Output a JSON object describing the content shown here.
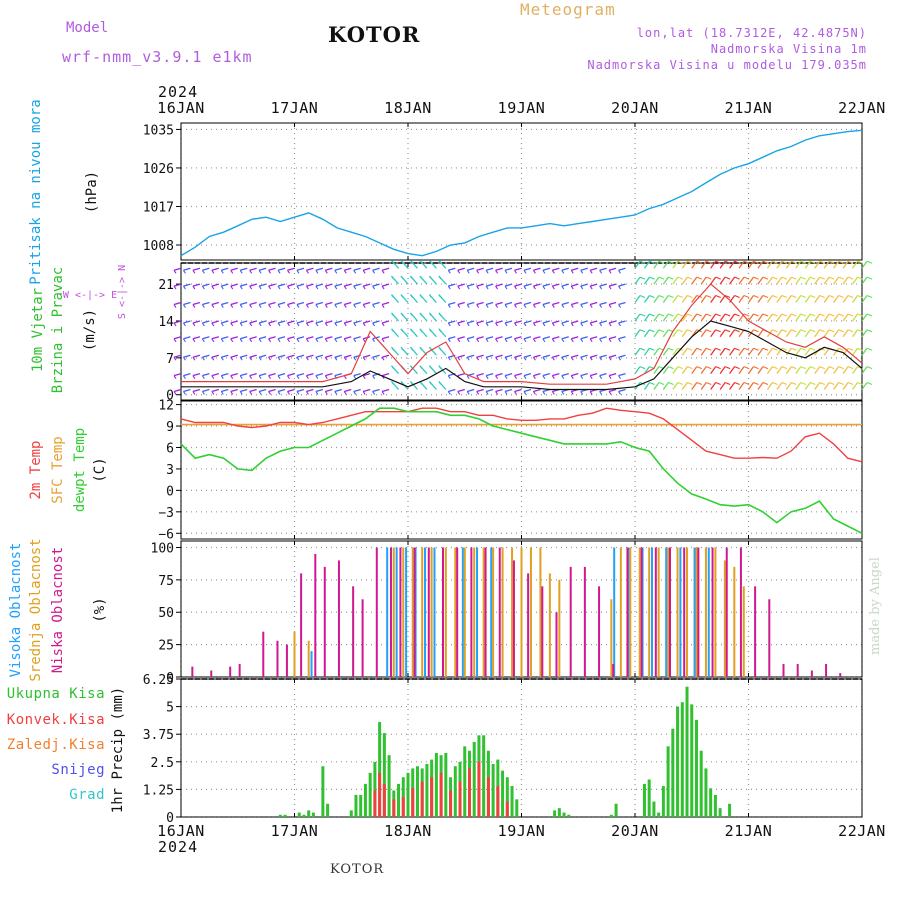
{
  "header": {
    "model_label": "Model",
    "model_version": "wrf-nmm_v3.9.1  e1km",
    "location_title": "KOTOR",
    "chart_kind": "Meteogram",
    "coords": "lon,lat (18.7312E, 42.4875N)",
    "altitude": "Nadmorska Visina 1m",
    "model_altitude": "Nadmorska Visina u modelu 179.035m",
    "year": "2024",
    "footer_location": "KOTOR",
    "credit": "made by Angel"
  },
  "colors": {
    "pressure": "#1aa3e8",
    "temp2m": "#f04040",
    "sfc_temp": "#e8a030",
    "dewpoint": "#30d030",
    "wind_label": "#30c030",
    "high_cloud": "#20a0ff",
    "mid_cloud": "#e0a020",
    "low_cloud": "#d01890",
    "total_precip": "#30c030",
    "conv_precip": "#f04040",
    "frozen_precip": "#f08030",
    "snow": "#5050f0",
    "hail": "#30c8c8",
    "compass": "#c050e0"
  },
  "chart_data": [
    {
      "id": "pressure",
      "type": "line",
      "title": "",
      "ylabel_lines": [
        "Pritisak na nivou mora",
        "(hPa)"
      ],
      "x_ticks": [
        "16JAN",
        "17JAN",
        "18JAN",
        "19JAN",
        "20JAN",
        "21JAN",
        "22JAN"
      ],
      "x_unit": "hours since 16JAN 00h",
      "xlim": [
        0,
        144
      ],
      "yticks": [
        1008,
        1017,
        1026,
        1035
      ],
      "ylim": [
        1004.5,
        1036.5
      ],
      "grid": true,
      "series": [
        {
          "x": [
            0,
            3,
            6,
            9,
            12,
            15,
            18,
            21,
            24,
            27,
            30,
            33,
            36,
            39,
            42,
            45,
            48,
            51,
            54,
            57,
            60,
            63,
            66,
            69,
            72,
            75,
            78,
            81,
            84,
            87,
            90,
            93,
            96,
            99,
            102,
            105,
            108,
            111,
            114,
            117,
            120,
            123,
            126,
            129,
            132,
            135,
            138,
            141,
            144
          ],
          "y": [
            1005.5,
            1007.5,
            1010,
            1011,
            1012.5,
            1014,
            1014.5,
            1013.5,
            1014.5,
            1015.5,
            1014,
            1012,
            1011,
            1010,
            1008.5,
            1007,
            1006,
            1005.5,
            1006.5,
            1008,
            1008.5,
            1010,
            1011,
            1012,
            1012,
            1012.5,
            1013,
            1012.5,
            1013,
            1013.5,
            1014,
            1014.5,
            1015,
            1016.5,
            1017.5,
            1019,
            1020.5,
            1022.5,
            1024.5,
            1026,
            1027,
            1028.5,
            1030,
            1031,
            1032.5,
            1033.5,
            1034,
            1034.5,
            1034.8
          ]
        }
      ]
    },
    {
      "id": "wind",
      "type": "line",
      "title": "",
      "ylabel_lines": [
        "10m Vjetar",
        "Brzina i Pravac",
        "(m/s)"
      ],
      "compass": [
        "W",
        "<-|->",
        "E",
        "S",
        "<-|->",
        "N"
      ],
      "xlim": [
        0,
        144
      ],
      "yticks": [
        0,
        7,
        14,
        21
      ],
      "ylim": [
        -1,
        25
      ],
      "grid": true,
      "series": [
        {
          "name": "speed",
          "x": [
            0,
            6,
            12,
            18,
            24,
            30,
            36,
            40,
            44,
            48,
            52,
            56,
            60,
            64,
            68,
            72,
            78,
            84,
            90,
            96,
            100,
            104,
            108,
            112,
            116,
            120,
            124,
            128,
            132,
            136,
            140,
            144
          ],
          "y": [
            1.5,
            1.5,
            1.5,
            1.5,
            1.5,
            1.5,
            2.5,
            4.5,
            3,
            1.5,
            3,
            5,
            2.5,
            1.5,
            1.5,
            1.5,
            1,
            1,
            1,
            1.5,
            3,
            7,
            11,
            14,
            13,
            12,
            10,
            8,
            7,
            9,
            8,
            5
          ]
        },
        {
          "name": "gust",
          "x": [
            0,
            6,
            12,
            18,
            24,
            30,
            36,
            40,
            44,
            48,
            52,
            56,
            60,
            64,
            68,
            72,
            78,
            84,
            90,
            96,
            100,
            104,
            108,
            112,
            116,
            120,
            124,
            128,
            132,
            136,
            140,
            144
          ],
          "y": [
            2.5,
            2.5,
            2.5,
            2.5,
            2.5,
            2.5,
            4,
            12,
            8,
            4,
            8,
            10,
            4,
            2.5,
            2.5,
            2.5,
            2,
            2,
            2,
            3,
            5,
            12,
            17,
            21,
            18,
            14,
            12,
            10,
            9,
            11,
            9,
            6
          ]
        }
      ]
    },
    {
      "id": "temperature",
      "type": "line",
      "title": "",
      "ylabel_lines": [
        "2m Temp",
        "SFC Temp",
        "dewpt Temp",
        "(C)"
      ],
      "xlim": [
        0,
        144
      ],
      "yticks": [
        -6,
        -3,
        0,
        3,
        6,
        9,
        12
      ],
      "ylim": [
        -6.8,
        12.5
      ],
      "grid": true,
      "series": [
        {
          "name": "2m Temp",
          "x": [
            0,
            3,
            6,
            9,
            12,
            15,
            18,
            21,
            24,
            27,
            30,
            33,
            36,
            39,
            42,
            45,
            48,
            51,
            54,
            57,
            60,
            63,
            66,
            69,
            72,
            75,
            78,
            81,
            84,
            87,
            90,
            93,
            96,
            99,
            102,
            105,
            108,
            111,
            114,
            117,
            120,
            123,
            126,
            129,
            132,
            135,
            138,
            141,
            144
          ],
          "y": [
            10,
            9.5,
            9.5,
            9.5,
            9,
            8.8,
            9,
            9.5,
            9.5,
            9.2,
            9.5,
            10,
            10.5,
            11,
            11,
            11,
            11,
            11.5,
            11.5,
            11,
            11,
            10.5,
            10.5,
            10,
            9.8,
            9.8,
            10,
            10,
            10.5,
            10.8,
            11.5,
            11.2,
            11,
            10.8,
            10,
            8.5,
            7,
            5.5,
            5,
            4.5,
            4.5,
            4.6,
            4.5,
            5.5,
            7.5,
            8,
            6.5,
            4.5,
            4
          ]
        },
        {
          "name": "SFC Temp",
          "x": [
            0,
            144
          ],
          "y": [
            9.2,
            9.2
          ]
        },
        {
          "name": "dewpt Temp",
          "x": [
            0,
            3,
            6,
            9,
            12,
            15,
            18,
            21,
            24,
            27,
            30,
            33,
            36,
            39,
            42,
            45,
            48,
            51,
            54,
            57,
            60,
            63,
            66,
            69,
            72,
            75,
            78,
            81,
            84,
            87,
            90,
            93,
            96,
            99,
            102,
            105,
            108,
            111,
            114,
            117,
            120,
            123,
            126,
            129,
            132,
            135,
            138,
            141,
            144
          ],
          "y": [
            6.5,
            4.5,
            5,
            4.5,
            3,
            2.8,
            4.5,
            5.5,
            6,
            6,
            7,
            8,
            9,
            10,
            11.5,
            11.5,
            11,
            11,
            11,
            10.5,
            10.5,
            10,
            9,
            8.5,
            8,
            7.5,
            7,
            6.5,
            6.5,
            6.5,
            6.5,
            6.8,
            6,
            5.5,
            3,
            1,
            -0.5,
            -1.2,
            -2,
            -2.2,
            -2,
            -3,
            -4.5,
            -3,
            -2.5,
            -1.5,
            -4,
            -5,
            -6
          ]
        }
      ]
    },
    {
      "id": "clouds",
      "type": "bar",
      "title": "",
      "ylabel_lines": [
        "Visoka Oblacnost",
        "Srednja Oblacnost",
        "Niska Oblacnost",
        "(%)"
      ],
      "xlim": [
        0,
        144
      ],
      "yticks": [
        0,
        25,
        50,
        75,
        100
      ],
      "ylim": [
        0,
        105
      ],
      "grid": true,
      "series": [
        {
          "name": "Visoka Oblacnost",
          "x": [
            28,
            44,
            46,
            48,
            50,
            52,
            54,
            60,
            63,
            66,
            92,
            95,
            98,
            100,
            103,
            106,
            109,
            112
          ],
          "values": [
            20,
            100,
            100,
            100,
            100,
            100,
            100,
            100,
            100,
            100,
            100,
            100,
            100,
            100,
            100,
            100,
            100,
            100
          ]
        },
        {
          "name": "Srednja Oblacnost",
          "x": [
            24,
            27,
            45,
            47,
            49,
            51,
            53,
            56,
            58,
            60,
            62,
            64,
            66,
            68,
            70,
            72,
            74,
            76,
            78,
            80,
            91,
            93,
            95,
            97,
            99,
            101,
            103,
            105,
            107,
            109,
            111,
            113,
            115,
            117,
            119
          ],
          "values": [
            35,
            28,
            100,
            100,
            100,
            100,
            100,
            100,
            100,
            100,
            100,
            100,
            100,
            100,
            100,
            100,
            100,
            100,
            80,
            75,
            60,
            100,
            100,
            100,
            100,
            100,
            100,
            100,
            100,
            100,
            100,
            100,
            90,
            85,
            70
          ]
        },
        {
          "name": "Niska Oblacnost",
          "x": [
            2,
            6,
            10,
            12,
            17,
            20,
            22,
            25,
            28,
            30,
            33,
            36,
            38,
            41,
            44,
            46,
            49,
            52,
            55,
            58,
            61,
            64,
            67,
            70,
            73,
            76,
            79,
            82,
            85,
            88,
            91,
            94,
            97,
            100,
            103,
            106,
            109,
            112,
            115,
            118,
            121,
            124,
            127,
            130,
            133,
            136,
            139
          ],
          "values": [
            8,
            5,
            8,
            10,
            35,
            28,
            25,
            80,
            95,
            85,
            90,
            70,
            60,
            100,
            100,
            100,
            100,
            100,
            100,
            100,
            100,
            100,
            100,
            90,
            80,
            70,
            50,
            85,
            85,
            70,
            10,
            100,
            100,
            100,
            100,
            100,
            100,
            100,
            100,
            100,
            70,
            60,
            10,
            10,
            5,
            10,
            3
          ]
        }
      ]
    },
    {
      "id": "precip",
      "type": "bar",
      "title": "",
      "ylabel_lines": [
        "1hr Precip (mm)"
      ],
      "legend": [
        "Ukupna Kisa",
        "Konvek.Kisa",
        "Zaledj.Kisa",
        "Snijeg",
        "Grad"
      ],
      "xlim": [
        0,
        144
      ],
      "yticks": [
        0,
        1.25,
        2.5,
        3.75,
        5,
        6.25
      ],
      "ylim": [
        0,
        6.25
      ],
      "grid": true,
      "series": [
        {
          "name": "Ukupna Kisa",
          "x": [
            21,
            22,
            25,
            26,
            27,
            28,
            30,
            31,
            36,
            37,
            38,
            39,
            40,
            41,
            42,
            43,
            44,
            45,
            46,
            47,
            48,
            49,
            50,
            51,
            52,
            53,
            54,
            55,
            56,
            57,
            58,
            59,
            60,
            61,
            62,
            63,
            64,
            65,
            66,
            67,
            68,
            69,
            70,
            71,
            79,
            80,
            81,
            82,
            91,
            92,
            98,
            99,
            100,
            101,
            102,
            103,
            104,
            105,
            106,
            107,
            108,
            109,
            110,
            111,
            112,
            113,
            114,
            116
          ],
          "values": [
            0.1,
            0.1,
            0.2,
            0.1,
            0.3,
            0.2,
            2.3,
            0.6,
            0.3,
            1.0,
            1.0,
            1.5,
            2.0,
            2.5,
            4.3,
            3.8,
            2.8,
            1.2,
            1.5,
            1.8,
            2.0,
            2.2,
            2.3,
            2.2,
            2.4,
            2.6,
            2.9,
            2.8,
            2.9,
            1.8,
            2.3,
            2.5,
            3.2,
            3.0,
            3.4,
            3.7,
            3.7,
            3.0,
            2.4,
            2.6,
            2.1,
            1.8,
            1.4,
            0.8,
            0.3,
            0.4,
            0.2,
            0.1,
            0.1,
            0.6,
            1.5,
            1.7,
            0.7,
            0.2,
            1.4,
            3.2,
            4.0,
            5.0,
            5.2,
            5.9,
            5.1,
            4.4,
            3.0,
            2.2,
            1.3,
            1.0,
            0.4,
            0.6
          ]
        },
        {
          "name": "Konvek.Kisa",
          "x": [
            41,
            42,
            43,
            45,
            47,
            49,
            51,
            53,
            55,
            57,
            59,
            61,
            63,
            65,
            67,
            69
          ],
          "values": [
            1.2,
            2.0,
            1.5,
            0.8,
            0.9,
            1.3,
            1.6,
            1.8,
            2.0,
            1.2,
            1.6,
            2.2,
            2.5,
            1.8,
            1.4,
            0.7
          ]
        },
        {
          "name": "Zaledj.Kisa",
          "x": [],
          "values": []
        },
        {
          "name": "Snijeg",
          "x": [],
          "values": []
        },
        {
          "name": "Grad",
          "x": [],
          "values": []
        }
      ]
    }
  ]
}
